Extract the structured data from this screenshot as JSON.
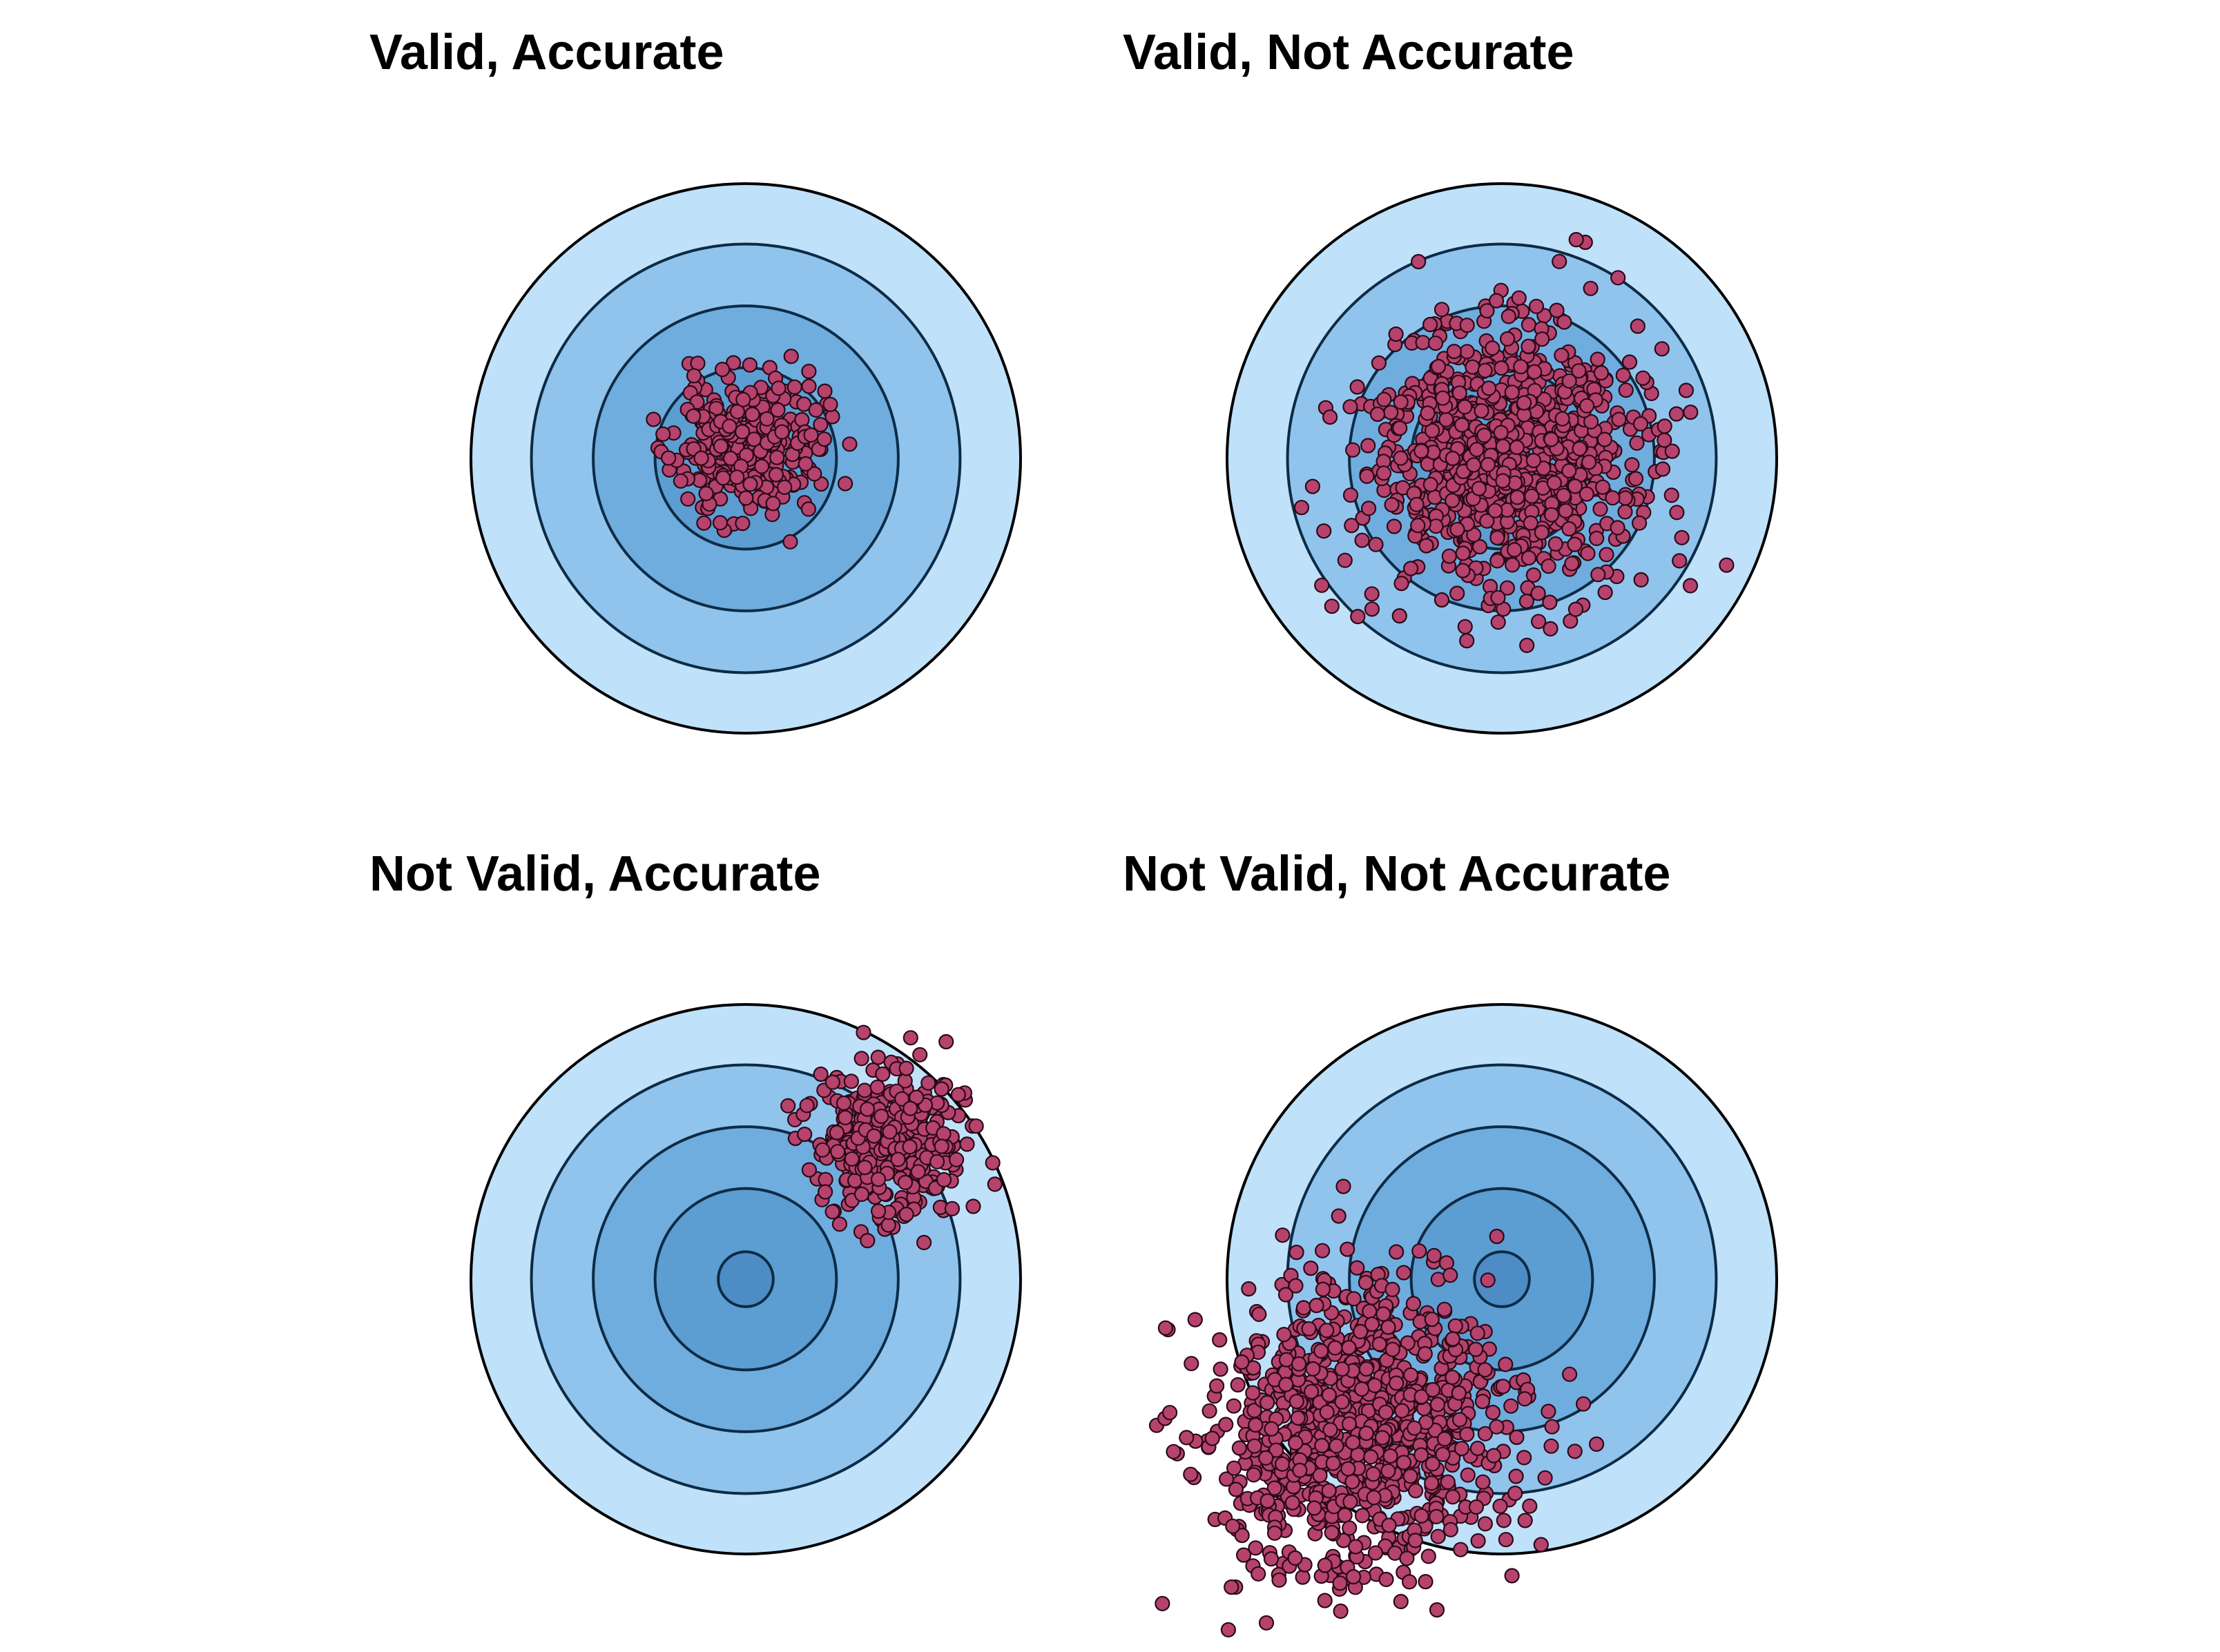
{
  "colors": {
    "background": "#ffffff",
    "rings": [
      "#bfe1fa",
      "#90c4ed",
      "#6fadde",
      "#5c9dd2",
      "#4d8cc4"
    ],
    "ring_stroke": "#0d2b45",
    "point_fill": "#b5436d",
    "point_stroke": "#2a0a16"
  },
  "chart_data": [
    {
      "type": "scatter",
      "title": "Valid, Accurate",
      "target": {
        "center": [
          0,
          0
        ],
        "ring_radii": [
          1,
          0.78,
          0.555,
          0.33,
          0.1
        ]
      },
      "cloud": {
        "n": 300,
        "center": [
          0.0,
          0.04
        ],
        "sd": 0.135,
        "max_r": 0.39,
        "seed": 11
      }
    },
    {
      "type": "scatter",
      "title": "Valid, Not Accurate",
      "target": {
        "center": [
          0,
          0
        ],
        "ring_radii": [
          1,
          0.78,
          0.555,
          0.33,
          0.1
        ]
      },
      "cloud": {
        "n": 900,
        "center": [
          0.0,
          0.0
        ],
        "sd": 0.24,
        "max_r": 1.05,
        "seed": 23
      }
    },
    {
      "type": "scatter",
      "title": "Not Valid, Accurate",
      "target": {
        "center": [
          0,
          0
        ],
        "ring_radii": [
          1,
          0.78,
          0.555,
          0.33,
          0.1
        ]
      },
      "cloud": {
        "n": 420,
        "center": [
          0.53,
          0.5
        ],
        "sd": 0.13,
        "max_r": 0.42,
        "seed": 37
      }
    },
    {
      "type": "scatter",
      "title": "Not Valid, Not Accurate",
      "target": {
        "center": [
          0,
          0
        ],
        "ring_radii": [
          1,
          0.78,
          0.555,
          0.33,
          0.1
        ]
      },
      "cloud": {
        "n": 950,
        "center": [
          -0.52,
          -0.56
        ],
        "sd": 0.27,
        "max_r": 1.0,
        "seed": 51
      }
    }
  ]
}
